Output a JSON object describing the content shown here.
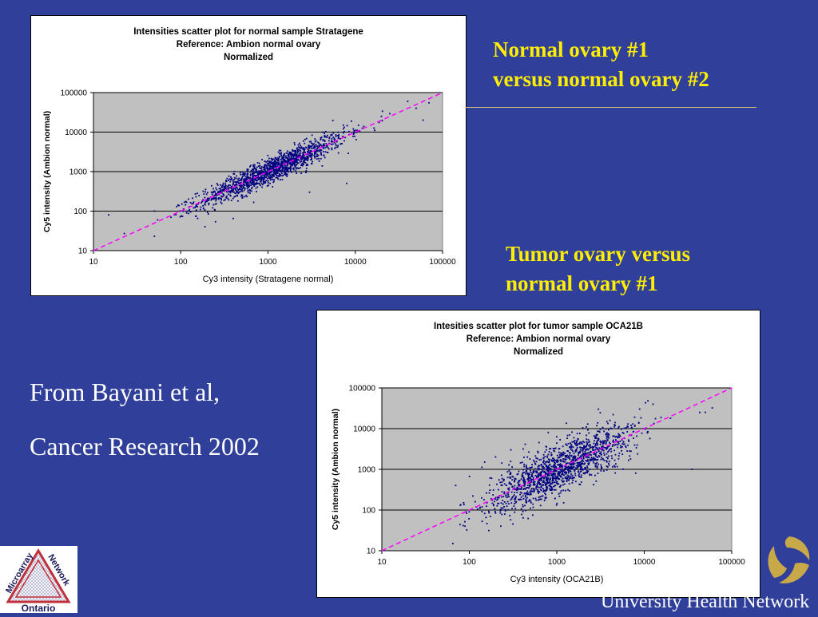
{
  "slide": {
    "heading1_line1": "Normal ovary #1",
    "heading1_line2": "versus normal ovary #2",
    "heading2_line1": "Tumor ovary versus",
    "heading2_line2": "normal ovary #1",
    "citation_line1": "From Bayani et al,",
    "citation_line2": "Cancer Research 2002",
    "logo_words": [
      "Microarray",
      "Network",
      "Ontario"
    ],
    "footer_org": "University Health Network",
    "colors": {
      "background": "#2f3f9a",
      "heading": "#ffee00",
      "points": "#000080",
      "reference_line": "#ff00ff",
      "plot_area": "#c0c0c0"
    }
  },
  "chart_data": [
    {
      "type": "scatter",
      "title_lines": [
        "Intensities scatter plot for normal sample Stratagene",
        "Reference: Ambion normal ovary",
        "Normalized"
      ],
      "xlabel": "Cy3 intensity (Stratagene normal)",
      "ylabel": "Cy5 intensity (Ambion normal)",
      "xscale": "log",
      "yscale": "log",
      "xlim": [
        10,
        100000
      ],
      "ylim": [
        10,
        100000
      ],
      "xticks": [
        "10",
        "100",
        "1000",
        "10000",
        "100000"
      ],
      "yticks": [
        "10",
        "100",
        "1000",
        "10000",
        "100000"
      ],
      "grid": "horizontal",
      "reference_line": "y = x (dashed)",
      "point_count": 1500,
      "trend": "tight cluster along y = x",
      "x_range_of_points": [
        15,
        70000
      ],
      "scatter_spread_log10": 0.16,
      "series": [
        {
          "points": [
            [
              15,
              80
            ],
            [
              50,
              100
            ],
            [
              90,
              130
            ],
            [
              130,
              95
            ],
            [
              150,
              230
            ],
            [
              190,
              40
            ],
            [
              250,
              150
            ],
            [
              300,
              400
            ],
            [
              400,
              65
            ],
            [
              500,
              600
            ],
            [
              800,
              900
            ],
            [
              1000,
              1200
            ],
            [
              2000,
              2500
            ],
            [
              3000,
              300
            ],
            [
              5000,
              6000
            ],
            [
              8000,
              500
            ],
            [
              10000,
              11000
            ],
            [
              20000,
              25000
            ],
            [
              40000,
              60000
            ],
            [
              50000,
              40000
            ],
            [
              60000,
              20000
            ],
            [
              70000,
              55000
            ]
          ]
        }
      ]
    },
    {
      "type": "scatter",
      "title_lines": [
        "Intesities scatter plot for tumor sample OCA21B",
        "Reference: Ambion normal ovary",
        "Normalized"
      ],
      "xlabel": "Cy3 intensity (OCA21B)",
      "ylabel": "Cy5 intensity (Ambion normal)",
      "xscale": "log",
      "yscale": "log",
      "xlim": [
        10,
        100000
      ],
      "ylim": [
        10,
        100000
      ],
      "xticks": [
        "10",
        "100",
        "1000",
        "10000",
        "100000"
      ],
      "yticks": [
        "10",
        "100",
        "1000",
        "10000",
        "100000"
      ],
      "grid": "horizontal",
      "reference_line": "y = x (dashed)",
      "point_count": 1500,
      "trend": "wider cluster along y = x",
      "x_range_of_points": [
        65,
        60000
      ],
      "scatter_spread_log10": 0.3,
      "series": [
        {
          "points": [
            [
              65,
              15
            ],
            [
              70,
              400
            ],
            [
              100,
              90
            ],
            [
              110,
              220
            ],
            [
              150,
              1500
            ],
            [
              180,
              600
            ],
            [
              200,
              2000
            ],
            [
              230,
              40
            ],
            [
              300,
              3000
            ],
            [
              500,
              500
            ],
            [
              800,
              8000
            ],
            [
              1000,
              1000
            ],
            [
              1200,
              150
            ],
            [
              2000,
              2500
            ],
            [
              3000,
              30000
            ],
            [
              5000,
              4000
            ],
            [
              8000,
              800
            ],
            [
              10000,
              10000
            ],
            [
              20000,
              18000
            ],
            [
              35000,
              1000
            ],
            [
              50000,
              25000
            ],
            [
              60000,
              32000
            ]
          ]
        }
      ]
    }
  ]
}
